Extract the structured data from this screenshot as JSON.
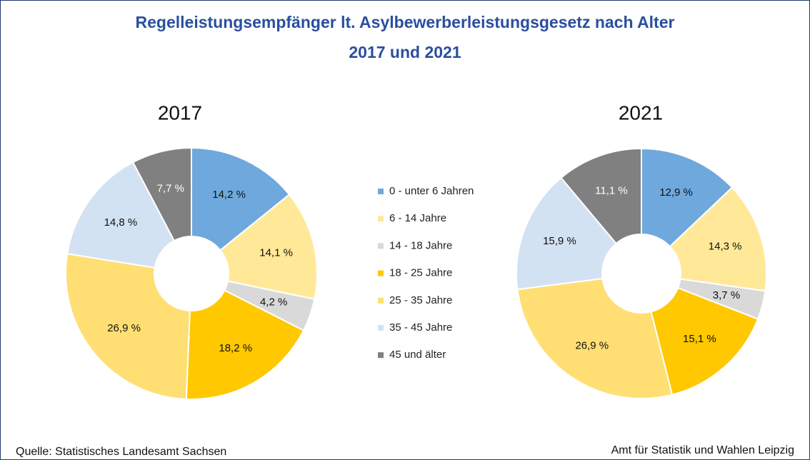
{
  "chart_data": {
    "type": "pie",
    "title": "Regelleistungsempfänger lt. Asylbewerberleistungsgesetz nach Alter",
    "subtitle": "2017 und 2021",
    "categories": [
      "0 - unter 6 Jahren",
      "6 - 14 Jahre",
      "14 - 18 Jahre",
      "18 - 25 Jahre",
      "25 - 35 Jahre",
      "35 - 45 Jahre",
      "45 und älter"
    ],
    "colors": [
      "#6fa8dc",
      "#ffe999",
      "#d9d9d9",
      "#ffc800",
      "#ffdf73",
      "#d3e2f2",
      "#808080"
    ],
    "series": [
      {
        "name": "2017",
        "values": [
          14.2,
          14.1,
          4.2,
          18.2,
          26.9,
          14.8,
          7.7
        ],
        "value_labels": [
          "14,2 %",
          "14,1 %",
          "4,2 %",
          "18,2 %",
          "26,9 %",
          "14,8 %",
          "7,7 %"
        ]
      },
      {
        "name": "2021",
        "values": [
          12.9,
          14.3,
          3.7,
          15.1,
          26.9,
          15.9,
          11.1
        ],
        "value_labels": [
          "12,9 %",
          "14,3 %",
          "3,7 %",
          "15,1 %",
          "26,9 %",
          "15,9 %",
          "11,1 %"
        ]
      }
    ],
    "source": "Quelle: Statistisches Landesamt Sachsen",
    "credit": "Amt für Statistik und Wahlen Leipzig"
  }
}
